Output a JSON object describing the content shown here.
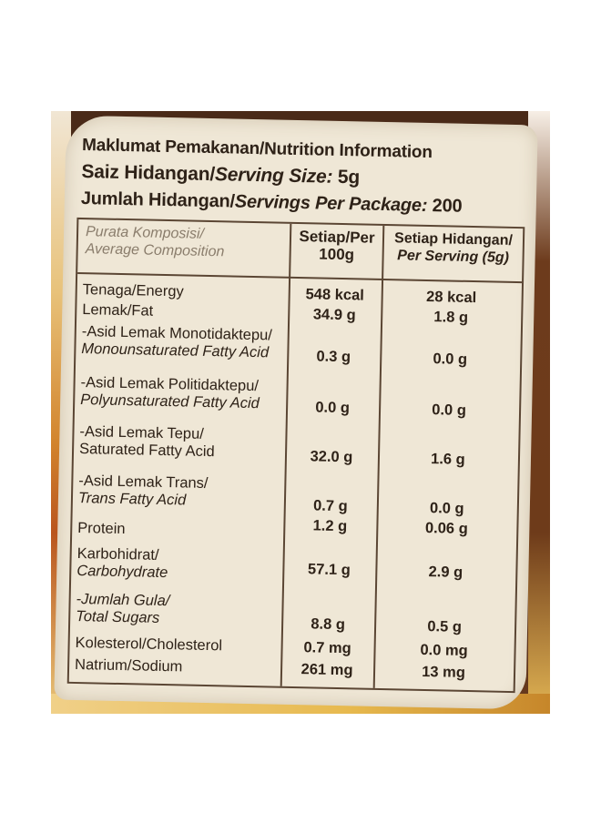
{
  "title": "Maklumat Pemakanan/Nutrition Information",
  "serving_size": {
    "label": "Saiz Hidangan/",
    "label_en": "Serving Size:",
    "value": "5g"
  },
  "servings_per_package": {
    "label": "Jumlah Hidangan/",
    "label_en": "Servings Per Package:",
    "value": "200"
  },
  "columns": {
    "composition_ms": "Purata Komposisi/",
    "composition_en": "Average Composition",
    "per100_l1": "Setiap/Per",
    "per100_l2": "100g",
    "perserv_l1": "Setiap Hidangan/",
    "perserv_l2": "Per Serving (5g)"
  },
  "rows": [
    {
      "name": "Tenaga/Energy",
      "name2": "",
      "per100": "548 kcal",
      "perserving": "28 kcal"
    },
    {
      "name": "Lemak/Fat",
      "name2": "",
      "per100": "34.9 g",
      "perserving": "1.8 g"
    },
    {
      "name": "-Asid Lemak Monotidaktepu/",
      "name2": "Monounsaturated Fatty Acid",
      "per100": "0.3 g",
      "perserving": "0.0 g"
    },
    {
      "name": "-Asid Lemak Politidaktepu/",
      "name2": "Polyunsaturated Fatty Acid",
      "per100": "0.0 g",
      "perserving": "0.0 g"
    },
    {
      "name": "-Asid Lemak Tepu/",
      "name2": "Saturated Fatty Acid",
      "per100": "32.0 g",
      "perserving": "1.6 g"
    },
    {
      "name": "-Asid Lemak Trans/",
      "name2": "Trans Fatty Acid",
      "per100": "0.7 g",
      "perserving": "0.0 g"
    },
    {
      "name": "Protein",
      "name2": "",
      "per100": "1.2 g",
      "perserving": "0.06 g"
    },
    {
      "name": "Karbohidrat/",
      "name2": "Carbohydrate",
      "per100": "57.1 g",
      "perserving": "2.9 g"
    },
    {
      "name": "-Jumlah Gula/",
      "name2": "Total Sugars",
      "per100": "8.8 g",
      "perserving": "0.5 g"
    },
    {
      "name": "Kolesterol/Cholesterol",
      "name2": "",
      "per100": "0.7 mg",
      "perserving": "0.0 mg"
    },
    {
      "name": "Natrium/Sodium",
      "name2": "",
      "per100": "261 mg",
      "perserving": "13 mg"
    }
  ]
}
